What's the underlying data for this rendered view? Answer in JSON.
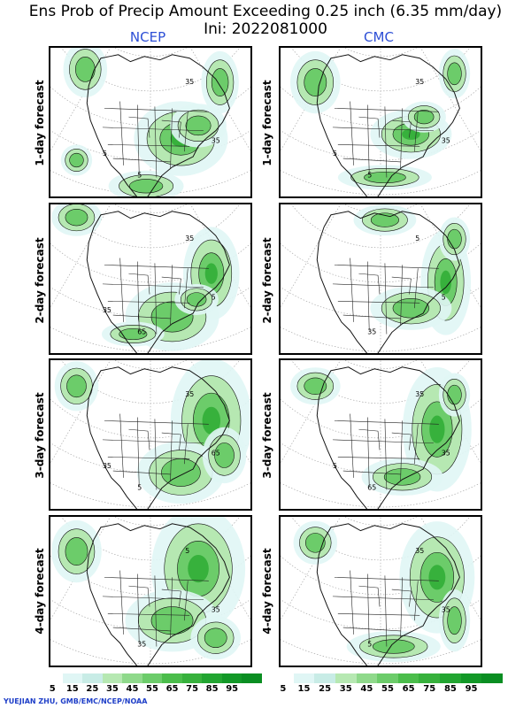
{
  "title": "Ens Prob of Precip Amount Exceeding 0.25 inch (6.35 mm/day)",
  "subtitle": "Ini: 2022081000",
  "columns": [
    "NCEP",
    "CMC"
  ],
  "row_labels": [
    "1-day forecast",
    "2-day forecast",
    "3-day forecast",
    "4-day forecast"
  ],
  "colorbar": {
    "labels": [
      "5",
      "15",
      "25",
      "35",
      "45",
      "55",
      "65",
      "75",
      "85",
      "95"
    ],
    "colors": [
      "#ffffff",
      "#e0f6f5",
      "#c8ece6",
      "#b6e8b2",
      "#8fd98b",
      "#6ccc6a",
      "#4bbd4b",
      "#37b13c",
      "#22a531",
      "#129827",
      "#0a8e22"
    ]
  },
  "contour_labels": {
    "ncep_1": [
      "35",
      "5",
      "35",
      "5"
    ],
    "cmc_1": [
      "35",
      "5",
      "35",
      "5"
    ],
    "ncep_2": [
      "35",
      "65",
      "5",
      "35"
    ],
    "cmc_2": [
      "5",
      "35",
      "5"
    ],
    "ncep_3": [
      "35",
      "5",
      "65",
      "35"
    ],
    "cmc_3": [
      "35",
      "65",
      "35",
      "5"
    ],
    "ncep_4": [
      "5",
      "35",
      "35"
    ],
    "cmc_4": [
      "35",
      "5",
      "35"
    ]
  },
  "credit": "YUEJIAN ZHU, GMB/EMC/NCEP/NOAA"
}
